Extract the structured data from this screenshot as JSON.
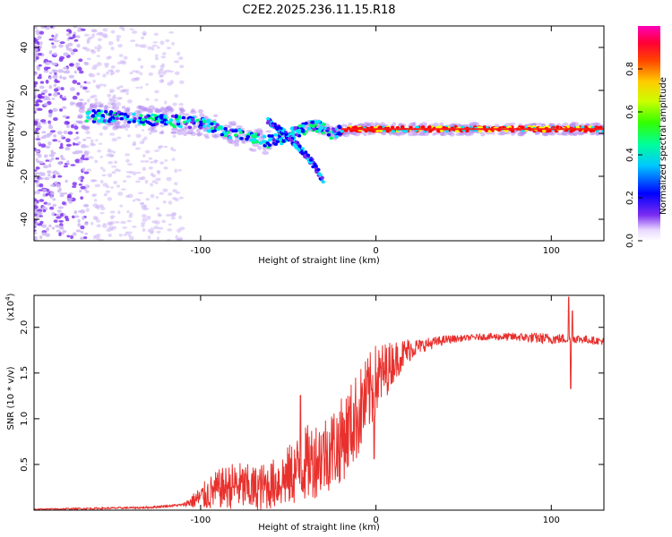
{
  "title": "C2E2.2025.236.11.15.R18",
  "colors": {
    "snr_line": "#e8312d",
    "band": "#6a1ad8"
  },
  "chart_data": [
    {
      "type": "heatmap",
      "name": "spectrogram",
      "xlabel": "Height of straight line (km)",
      "ylabel": "Frequency (Hz)",
      "xlim": [
        -195,
        130
      ],
      "ylim": [
        -50,
        50
      ],
      "xticks": [
        -100,
        0,
        100
      ],
      "xtick_labels": [
        "-100",
        "0",
        "100"
      ],
      "yticks": [
        -40,
        -20,
        0,
        20,
        40
      ],
      "ytick_labels": [
        "-40",
        "-20",
        "0",
        "20",
        "40"
      ],
      "colorbar": {
        "label": "Normalized spectral amplitude",
        "range": [
          0,
          1
        ],
        "ticks": [
          0.0,
          0.2,
          0.4,
          0.6,
          0.8
        ],
        "tick_labels": [
          "0.0",
          "0.2",
          "0.4",
          "0.6",
          "0.8"
        ],
        "colormap": [
          "#ffffff",
          "#7b2cf0",
          "#0000ff",
          "#00e5ff",
          "#00ff66",
          "#a8ff00",
          "#ffff00",
          "#ff8800",
          "#ff0000",
          "#ff00aa"
        ]
      },
      "main_band": [
        {
          "x": -160,
          "f": 8
        },
        {
          "x": -140,
          "f": 7
        },
        {
          "x": -120,
          "f": 6
        },
        {
          "x": -100,
          "f": 5
        },
        {
          "x": -90,
          "f": 2
        },
        {
          "x": -80,
          "f": 0
        },
        {
          "x": -70,
          "f": -2
        },
        {
          "x": -63,
          "f": -4
        },
        {
          "x": -55,
          "f": -3
        },
        {
          "x": -45,
          "f": 1
        },
        {
          "x": -35,
          "f": 4
        },
        {
          "x": -25,
          "f": 0
        },
        {
          "x": -15,
          "f": 2
        },
        {
          "x": -5,
          "f": 2
        },
        {
          "x": 20,
          "f": 2
        },
        {
          "x": 60,
          "f": 2
        },
        {
          "x": 90,
          "f": 2
        },
        {
          "x": 130,
          "f": 2
        }
      ],
      "branch": [
        {
          "x": -62,
          "f": 6
        },
        {
          "x": -52,
          "f": 0
        },
        {
          "x": -42,
          "f": -8
        },
        {
          "x": -35,
          "f": -15
        },
        {
          "x": -30,
          "f": -22
        }
      ]
    },
    {
      "type": "line",
      "name": "snr",
      "xlabel": "Height of straight line (km)",
      "ylabel": "SNR (10 * v/v)",
      "exponent_label": "(x10",
      "exponent_power": "4",
      "exponent_close": ")",
      "xlim": [
        -195,
        130
      ],
      "ylim": [
        0,
        2.35
      ],
      "xticks": [
        -100,
        0,
        100
      ],
      "xtick_labels": [
        "-100",
        "0",
        "100"
      ],
      "yticks": [
        0.5,
        1.0,
        1.5,
        2.0
      ],
      "ytick_labels": [
        "0.5",
        "1.0",
        "1.5",
        "2.0"
      ],
      "trend": [
        {
          "x": -195,
          "y": 0.01
        },
        {
          "x": -160,
          "y": 0.02
        },
        {
          "x": -130,
          "y": 0.03
        },
        {
          "x": -110,
          "y": 0.06
        },
        {
          "x": -100,
          "y": 0.15
        },
        {
          "x": -90,
          "y": 0.25
        },
        {
          "x": -80,
          "y": 0.3
        },
        {
          "x": -70,
          "y": 0.25
        },
        {
          "x": -60,
          "y": 0.3
        },
        {
          "x": -50,
          "y": 0.4
        },
        {
          "x": -40,
          "y": 0.55
        },
        {
          "x": -30,
          "y": 0.65
        },
        {
          "x": -20,
          "y": 0.8
        },
        {
          "x": -10,
          "y": 1.1
        },
        {
          "x": 0,
          "y": 1.45
        },
        {
          "x": 10,
          "y": 1.65
        },
        {
          "x": 20,
          "y": 1.78
        },
        {
          "x": 40,
          "y": 1.87
        },
        {
          "x": 60,
          "y": 1.9
        },
        {
          "x": 80,
          "y": 1.9
        },
        {
          "x": 100,
          "y": 1.88
        },
        {
          "x": 115,
          "y": 1.88
        },
        {
          "x": 130,
          "y": 1.85
        }
      ],
      "noise": [
        {
          "x": -195,
          "a": 0.01
        },
        {
          "x": -110,
          "a": 0.02
        },
        {
          "x": -95,
          "a": 0.25
        },
        {
          "x": -80,
          "a": 0.35
        },
        {
          "x": -60,
          "a": 0.35
        },
        {
          "x": -40,
          "a": 0.55
        },
        {
          "x": -25,
          "a": 0.6
        },
        {
          "x": -10,
          "a": 0.65
        },
        {
          "x": 0,
          "a": 0.55
        },
        {
          "x": 10,
          "a": 0.3
        },
        {
          "x": 25,
          "a": 0.1
        },
        {
          "x": 50,
          "a": 0.04
        },
        {
          "x": 80,
          "a": 0.06
        },
        {
          "x": 95,
          "a": 0.08
        },
        {
          "x": 130,
          "a": 0.05
        }
      ],
      "spikes": [
        {
          "x": 110,
          "dy": 0.45
        },
        {
          "x": 111,
          "dy": -0.55
        },
        {
          "x": 112,
          "dy": 0.3
        },
        {
          "x": -1,
          "dy": -0.85
        },
        {
          "x": -43,
          "dy": 0.75
        },
        {
          "x": -22,
          "dy": -0.4
        }
      ]
    }
  ]
}
